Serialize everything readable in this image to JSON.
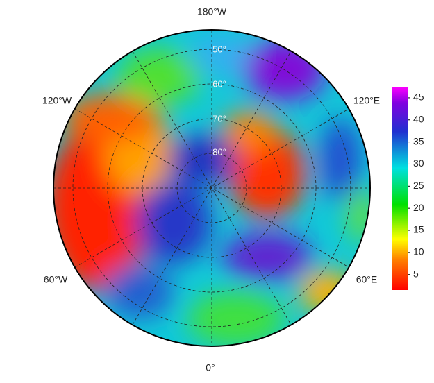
{
  "map": {
    "longitude_labels": {
      "top": "180°W",
      "upper_left": "120°W",
      "upper_right": "120°E",
      "lower_left": "60°W",
      "lower_right": "60°E",
      "bottom": "0°"
    },
    "latitude_labels": [
      "50°",
      "60°",
      "70°",
      "80°"
    ],
    "colorbar": {
      "range": [
        1.5,
        47.5
      ],
      "ticks": [
        5,
        10,
        15,
        20,
        25,
        30,
        35,
        40,
        45
      ]
    }
  }
}
